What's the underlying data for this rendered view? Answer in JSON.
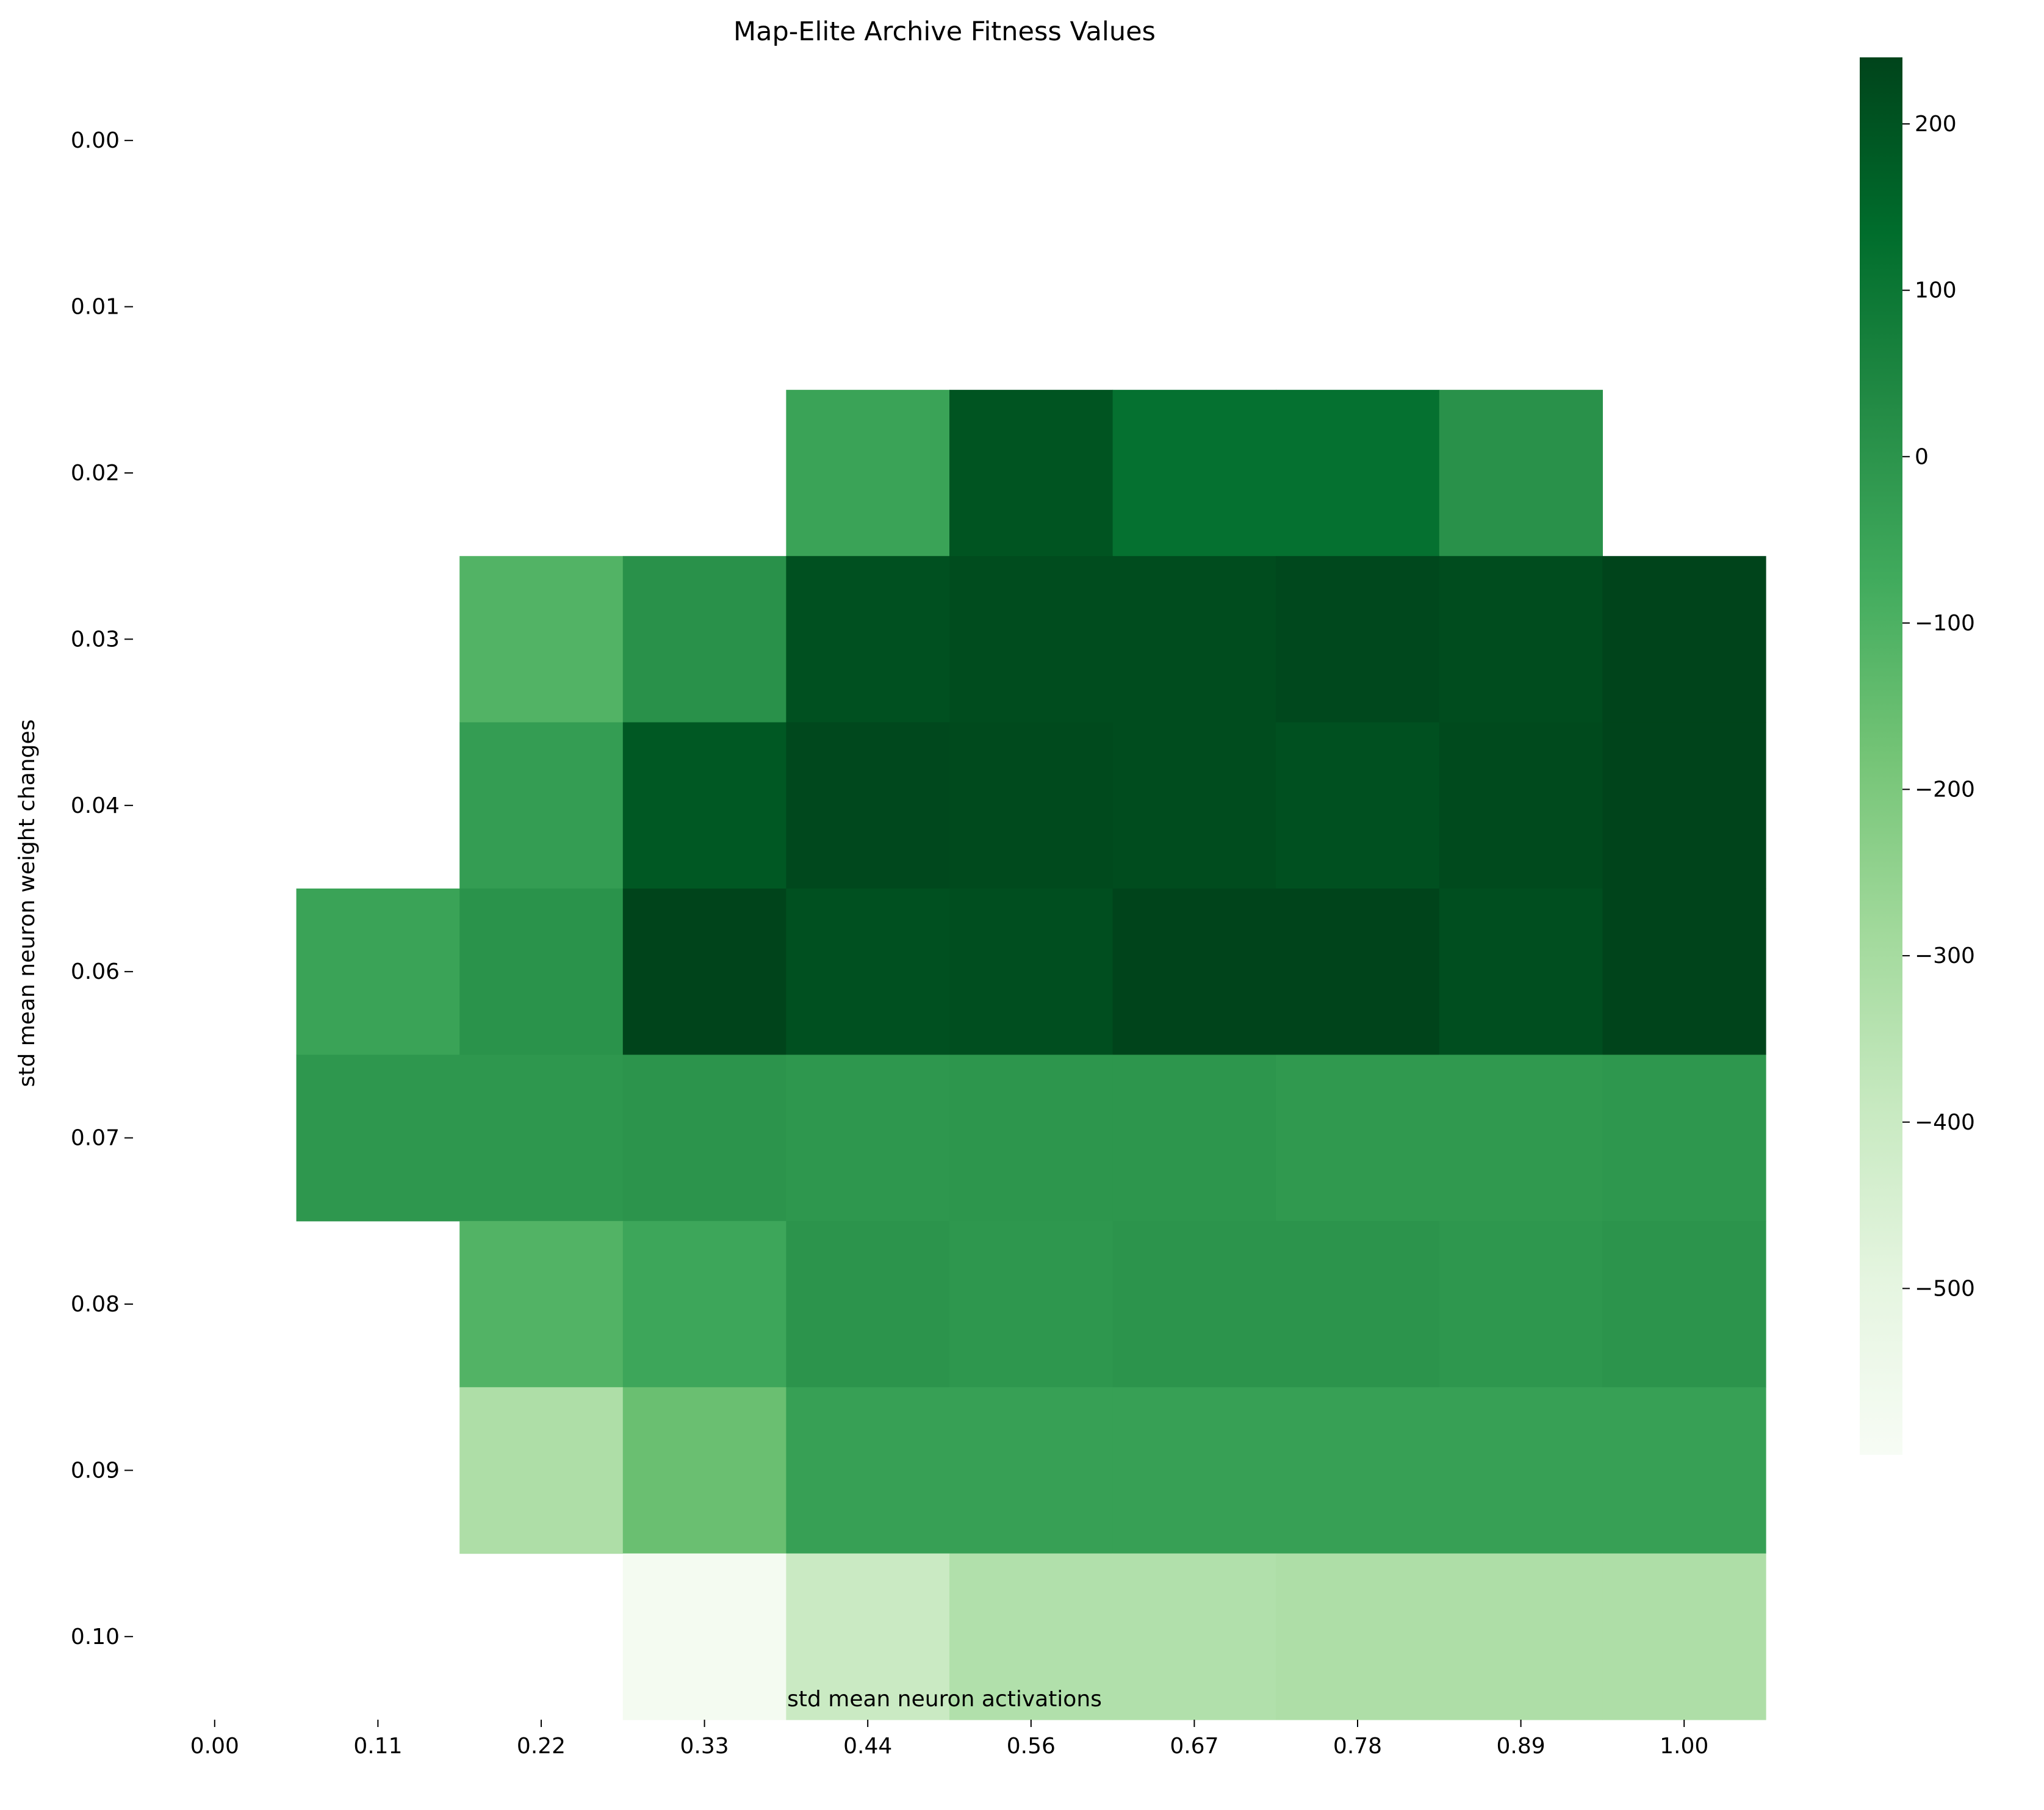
{
  "chart_data": {
    "type": "heatmap",
    "title": "Map-Elite Archive Fitness Values",
    "xlabel": "std mean neuron activations",
    "ylabel": "std mean neuron weight changes",
    "x_ticks": [
      "0.00",
      "0.11",
      "0.22",
      "0.33",
      "0.44",
      "0.56",
      "0.67",
      "0.78",
      "0.89",
      "1.00"
    ],
    "y_ticks": [
      "0.00",
      "0.01",
      "0.02",
      "0.03",
      "0.04",
      "0.06",
      "0.07",
      "0.08",
      "0.09",
      "0.10"
    ],
    "colormap": "Greens",
    "colorbar": {
      "min": -600,
      "max": 240,
      "ticks": [
        200,
        100,
        0,
        -100,
        -200,
        -300,
        -400,
        -500
      ],
      "tick_labels": [
        "200",
        "100",
        "0",
        "−100",
        "−200",
        "−300",
        "−400",
        "−500"
      ]
    },
    "values": [
      [
        null,
        null,
        null,
        null,
        null,
        null,
        null,
        null,
        null,
        null
      ],
      [
        null,
        null,
        null,
        null,
        null,
        null,
        null,
        null,
        null,
        null
      ],
      [
        null,
        null,
        null,
        null,
        -50,
        200,
        120,
        120,
        10,
        null
      ],
      [
        null,
        null,
        -110,
        10,
        210,
        220,
        220,
        230,
        220,
        245
      ],
      [
        null,
        null,
        -30,
        190,
        230,
        225,
        220,
        210,
        225,
        245
      ],
      [
        null,
        -50,
        5,
        240,
        210,
        215,
        240,
        245,
        215,
        240
      ],
      [
        null,
        -10,
        -10,
        0,
        -10,
        -5,
        -5,
        -15,
        -15,
        -10
      ],
      [
        null,
        null,
        -110,
        -60,
        0,
        -10,
        0,
        0,
        -10,
        0
      ],
      [
        null,
        null,
        -320,
        -160,
        -40,
        -40,
        -40,
        -40,
        -40,
        -40
      ],
      [
        null,
        null,
        null,
        -580,
        -400,
        -330,
        -330,
        -320,
        -320,
        -320
      ]
    ]
  }
}
